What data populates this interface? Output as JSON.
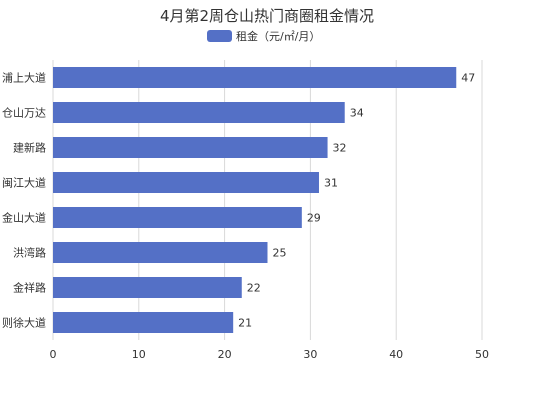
{
  "chart_data": {
    "type": "bar",
    "orientation": "horizontal",
    "title": "4月第2周仓山热门商圈租金情况",
    "categories": [
      "浦上大道",
      "仓山万达",
      "建新路",
      "闽江大道",
      "金山大道",
      "洪湾路",
      "金祥路",
      "则徐大道"
    ],
    "series": [
      {
        "name": "租金（元/㎡/月）",
        "values": [
          47,
          34,
          32,
          31,
          29,
          25,
          22,
          21
        ],
        "color": "#5470c6"
      }
    ],
    "xlim": [
      0,
      50
    ],
    "xticks": [
      0,
      10,
      20,
      30,
      40,
      50
    ],
    "grid": true,
    "legend_position": "top-center",
    "data_labels": true
  }
}
